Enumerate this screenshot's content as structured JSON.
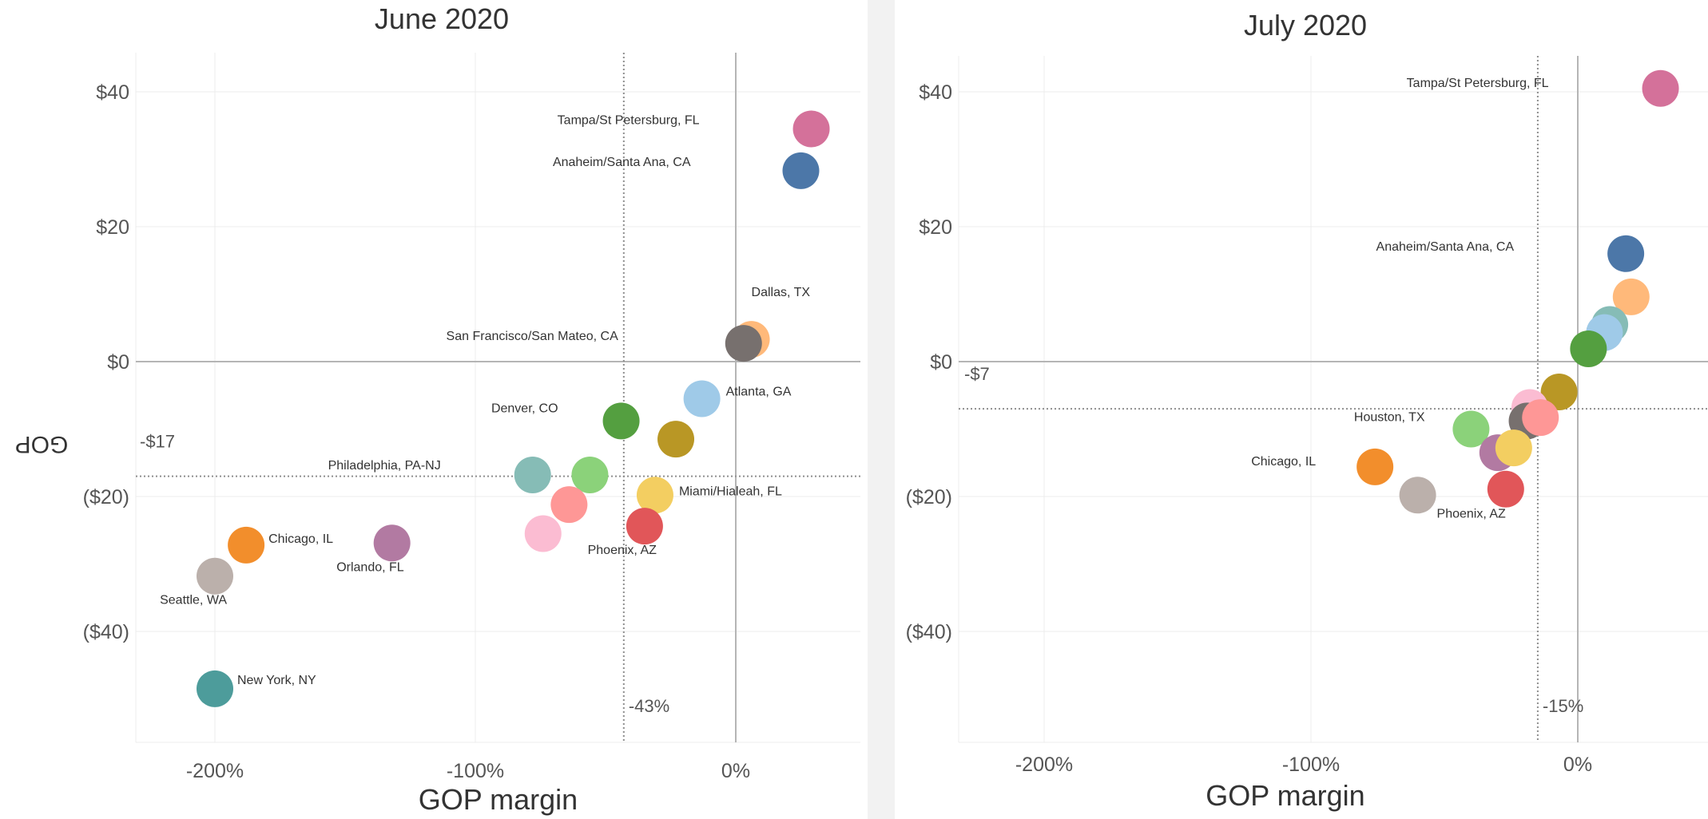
{
  "colors": {
    "grid": "#ececec",
    "zero_line": "#b5b5b5",
    "reference_line": "#8e8e8e",
    "separator": "#f2f2f2"
  },
  "chart_data": [
    {
      "type": "scatter",
      "title": "June 2020",
      "xlabel": "GOP margin",
      "ylabel": "GOP",
      "xlim": [
        -2.3,
        0.5
      ],
      "ylim": [
        -56,
        46
      ],
      "x_ticks": [
        -2,
        -1,
        0
      ],
      "x_tick_labels": [
        "-200%",
        "-100%",
        "0%"
      ],
      "y_ticks": [
        40,
        20,
        0,
        -20,
        -40
      ],
      "y_tick_labels": [
        "$40",
        "$20",
        "$0",
        "($20)",
        "($40)"
      ],
      "grid": true,
      "x_reference": {
        "value": -0.43,
        "label": "-43%"
      },
      "y_reference": {
        "value": -17,
        "label": "-$17"
      },
      "points": [
        {
          "label": "Tampa/St Petersburg, FL",
          "x": 0.29,
          "y": 34.5,
          "color": "#d4719a"
        },
        {
          "label": "Anaheim/Santa Ana, CA",
          "x": 0.25,
          "y": 28.3,
          "color": "#4c77a8"
        },
        {
          "label": "Dallas, TX",
          "x": 0.06,
          "y": 3.3,
          "color": "#ffb97a"
        },
        {
          "label": "San Francisco/San Mateo, CA",
          "x": 0.03,
          "y": 2.7,
          "color": "#77706e"
        },
        {
          "label": "Atlanta, GA",
          "x": -0.13,
          "y": -5.5,
          "color": "#9fcae8"
        },
        {
          "label": "Denver, CO",
          "x": -0.44,
          "y": -8.8,
          "color": "#549f40"
        },
        {
          "label": "",
          "x": -0.23,
          "y": -11.5,
          "color": "#b99725"
        },
        {
          "label": "Philadelphia, PA-NJ",
          "x": -0.78,
          "y": -16.8,
          "color": "#86bcb6"
        },
        {
          "label": "",
          "x": -0.56,
          "y": -16.8,
          "color": "#8bd27a"
        },
        {
          "label": "Miami/Hialeah, FL",
          "x": -0.31,
          "y": -19.8,
          "color": "#f3ce61"
        },
        {
          "label": "",
          "x": -0.64,
          "y": -21.2,
          "color": "#fe9796"
        },
        {
          "label": "Phoenix, AZ",
          "x": -0.35,
          "y": -24.4,
          "color": "#e15659"
        },
        {
          "label": "",
          "x": -0.74,
          "y": -25.5,
          "color": "#fbbcd2"
        },
        {
          "label": "Orlando, FL",
          "x": -1.32,
          "y": -26.9,
          "color": "#b27aa2"
        },
        {
          "label": "Chicago, IL",
          "x": -1.88,
          "y": -27.2,
          "color": "#f28e2c"
        },
        {
          "label": "Seattle, WA",
          "x": -2.0,
          "y": -31.8,
          "color": "#bbb0ab"
        },
        {
          "label": "New York, NY",
          "x": -2.0,
          "y": -48.5,
          "color": "#4d9c9b"
        }
      ]
    },
    {
      "type": "scatter",
      "title": "July 2020",
      "xlabel": "GOP margin",
      "ylabel": "",
      "xlim": [
        -2.3,
        0.5
      ],
      "ylim": [
        -56,
        46
      ],
      "x_ticks": [
        -2,
        -1,
        0
      ],
      "x_tick_labels": [
        "-200%",
        "-100%",
        "0%"
      ],
      "y_ticks": [
        40,
        20,
        0,
        -20,
        -40
      ],
      "y_tick_labels": [
        "$40",
        "$20",
        "$0",
        "($20)",
        "($40)"
      ],
      "grid": true,
      "x_reference": {
        "value": -0.15,
        "label": "-15%"
      },
      "y_reference": {
        "value": -7,
        "label": "-$7"
      },
      "points": [
        {
          "label": "Tampa/St Petersburg, FL",
          "x": 0.31,
          "y": 40.5,
          "color": "#d4719a"
        },
        {
          "label": "Anaheim/Santa Ana, CA",
          "x": 0.18,
          "y": 16.0,
          "color": "#4c77a8"
        },
        {
          "label": "",
          "x": 0.2,
          "y": 9.6,
          "color": "#ffb97a"
        },
        {
          "label": "",
          "x": 0.12,
          "y": 5.5,
          "color": "#86bcb6"
        },
        {
          "label": "",
          "x": 0.1,
          "y": 4.3,
          "color": "#9fcae8"
        },
        {
          "label": "",
          "x": 0.04,
          "y": 1.9,
          "color": "#549f40"
        },
        {
          "label": "",
          "x": -0.07,
          "y": -4.5,
          "color": "#b99725"
        },
        {
          "label": "",
          "x": -0.18,
          "y": -6.8,
          "color": "#fbbcd2"
        },
        {
          "label": "Houston, TX",
          "x": -0.19,
          "y": -8.8,
          "color": "#77706e"
        },
        {
          "label": "",
          "x": -0.14,
          "y": -8.3,
          "color": "#fe9796"
        },
        {
          "label": "",
          "x": -0.4,
          "y": -10.0,
          "color": "#8bd27a"
        },
        {
          "label": "",
          "x": -0.3,
          "y": -13.5,
          "color": "#b27aa2"
        },
        {
          "label": "",
          "x": -0.24,
          "y": -12.8,
          "color": "#f3ce61"
        },
        {
          "label": "Phoenix, AZ",
          "x": -0.27,
          "y": -18.9,
          "color": "#e15659"
        },
        {
          "label": "Chicago, IL",
          "x": -0.76,
          "y": -15.6,
          "color": "#f28e2c"
        },
        {
          "label": "",
          "x": -0.6,
          "y": -19.8,
          "color": "#bbb0ab"
        }
      ]
    }
  ]
}
